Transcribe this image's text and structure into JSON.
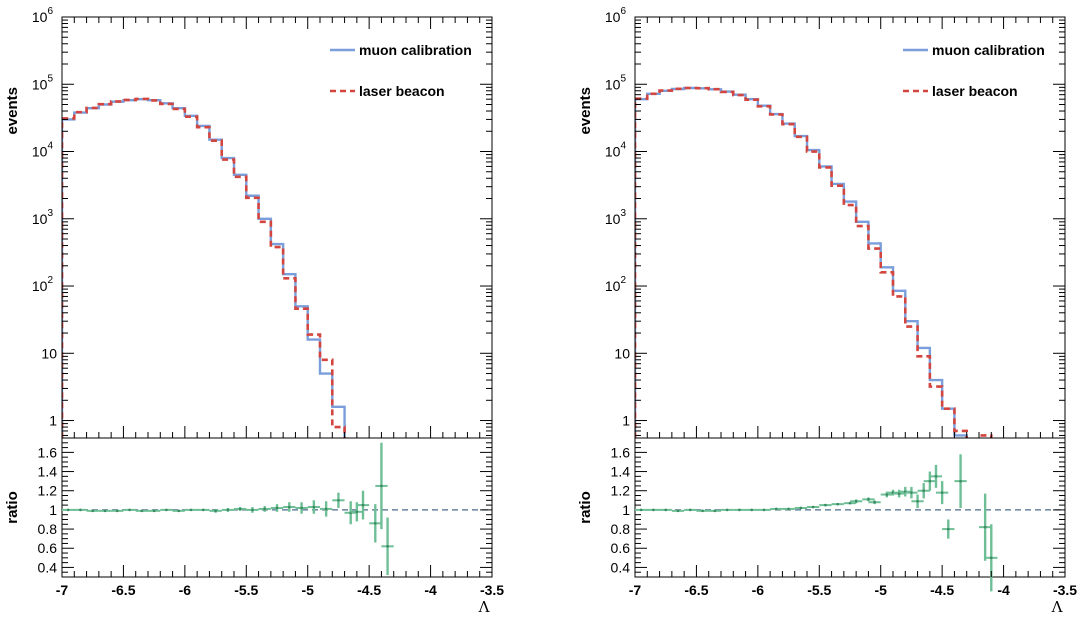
{
  "chart_data": [
    {
      "type": "histogram",
      "panel": "left",
      "legend": [
        {
          "name": "muon calibration",
          "color": "#7a9edb",
          "style": "solid"
        },
        {
          "name": "laser beacon",
          "color": "#d3453f",
          "style": "dashed"
        }
      ],
      "legend_placement": "top-right",
      "upper": {
        "ylabel": "events",
        "yscale": "log",
        "ylim": [
          0.55,
          1000000
        ],
        "yticks": [
          {
            "value": 1,
            "label": "1"
          },
          {
            "value": 10,
            "label": "10"
          },
          {
            "value": 100,
            "label": "10",
            "exp": "2"
          },
          {
            "value": 1000,
            "label": "10",
            "exp": "3"
          },
          {
            "value": 10000,
            "label": "10",
            "exp": "4"
          },
          {
            "value": 100000,
            "label": "10",
            "exp": "5"
          },
          {
            "value": 1000000,
            "label": "10",
            "exp": "6"
          }
        ],
        "bin_edges": [
          -7.0,
          -6.9,
          -6.8,
          -6.7,
          -6.6,
          -6.5,
          -6.4,
          -6.3,
          -6.2,
          -6.1,
          -6.0,
          -5.9,
          -5.8,
          -5.7,
          -5.6,
          -5.5,
          -5.4,
          -5.3,
          -5.2,
          -5.1,
          -5.0,
          -4.9,
          -4.8,
          -4.7,
          -4.6,
          -4.5,
          -4.4,
          -4.3,
          -4.2,
          -4.1,
          -4.0,
          -3.9,
          -3.8,
          -3.7,
          -3.6,
          -3.5
        ],
        "series": [
          {
            "name": "muon calibration",
            "values": [
              30000,
              38000,
              44000,
              50000,
              55000,
              58000,
              60000,
              58000,
              52000,
              44000,
              34000,
              24000,
              15000,
              8000,
              4500,
              2200,
              1000,
              420,
              150,
              50,
              16,
              5,
              1.6,
              0,
              0,
              0,
              0,
              0,
              0,
              0,
              0,
              0,
              0,
              0,
              0
            ]
          },
          {
            "name": "laser beacon",
            "values": [
              31000,
              38500,
              44500,
              50500,
              55500,
              58500,
              60500,
              57500,
              51000,
              43000,
              33000,
              23000,
              14500,
              7600,
              4200,
              2050,
              900,
              380,
              130,
              46,
              19,
              8,
              0.8,
              0,
              0,
              0,
              0,
              0,
              0,
              0,
              0,
              0,
              0,
              0,
              0
            ]
          }
        ]
      },
      "lower": {
        "ylabel": "ratio",
        "ylim": [
          0.3,
          1.75
        ],
        "yticks": [
          0.4,
          0.6,
          0.8,
          1,
          1.2,
          1.4,
          1.6
        ],
        "reference_line": 1,
        "points": [
          {
            "x": -6.95,
            "y": 1.0,
            "err": 0.01
          },
          {
            "x": -6.85,
            "y": 1.0,
            "err": 0.01
          },
          {
            "x": -6.75,
            "y": 0.99,
            "err": 0.01
          },
          {
            "x": -6.65,
            "y": 0.99,
            "err": 0.01
          },
          {
            "x": -6.55,
            "y": 0.99,
            "err": 0.01
          },
          {
            "x": -6.45,
            "y": 1.0,
            "err": 0.01
          },
          {
            "x": -6.35,
            "y": 0.99,
            "err": 0.01
          },
          {
            "x": -6.25,
            "y": 0.99,
            "err": 0.01
          },
          {
            "x": -6.15,
            "y": 1.0,
            "err": 0.01
          },
          {
            "x": -6.05,
            "y": 0.99,
            "err": 0.01
          },
          {
            "x": -5.95,
            "y": 1.0,
            "err": 0.01
          },
          {
            "x": -5.85,
            "y": 1.0,
            "err": 0.01
          },
          {
            "x": -5.75,
            "y": 0.99,
            "err": 0.02
          },
          {
            "x": -5.65,
            "y": 1.0,
            "err": 0.02
          },
          {
            "x": -5.55,
            "y": 1.01,
            "err": 0.02
          },
          {
            "x": -5.45,
            "y": 1.0,
            "err": 0.03
          },
          {
            "x": -5.35,
            "y": 1.01,
            "err": 0.03
          },
          {
            "x": -5.25,
            "y": 1.02,
            "err": 0.04
          },
          {
            "x": -5.15,
            "y": 1.03,
            "err": 0.05
          },
          {
            "x": -5.05,
            "y": 1.02,
            "err": 0.06
          },
          {
            "x": -4.95,
            "y": 1.03,
            "err": 0.07
          },
          {
            "x": -4.85,
            "y": 1.01,
            "err": 0.08
          },
          {
            "x": -4.75,
            "y": 1.1,
            "err": 0.08
          },
          {
            "x": -4.65,
            "y": 0.97,
            "err": 0.12
          },
          {
            "x": -4.6,
            "y": 0.98,
            "err": 0.1
          },
          {
            "x": -4.55,
            "y": 1.05,
            "err": 0.15
          },
          {
            "x": -4.45,
            "y": 0.86,
            "err": 0.2
          },
          {
            "x": -4.4,
            "y": 1.25,
            "err": 0.45
          },
          {
            "x": -4.35,
            "y": 0.62,
            "err": 0.3
          }
        ]
      }
    },
    {
      "type": "histogram",
      "panel": "right",
      "legend": [
        {
          "name": "muon calibration",
          "color": "#7a9edb",
          "style": "solid"
        },
        {
          "name": "laser beacon",
          "color": "#d3453f",
          "style": "dashed"
        }
      ],
      "legend_placement": "top-right",
      "upper": {
        "ylabel": "events",
        "yscale": "log",
        "ylim": [
          0.55,
          1000000
        ],
        "yticks": [
          {
            "value": 1,
            "label": "1"
          },
          {
            "value": 10,
            "label": "10"
          },
          {
            "value": 100,
            "label": "10",
            "exp": "2"
          },
          {
            "value": 1000,
            "label": "10",
            "exp": "3"
          },
          {
            "value": 10000,
            "label": "10",
            "exp": "4"
          },
          {
            "value": 100000,
            "label": "10",
            "exp": "5"
          },
          {
            "value": 1000000,
            "label": "10",
            "exp": "6"
          }
        ],
        "bin_edges": [
          -7.0,
          -6.9,
          -6.8,
          -6.7,
          -6.6,
          -6.5,
          -6.4,
          -6.3,
          -6.2,
          -6.1,
          -6.0,
          -5.9,
          -5.8,
          -5.7,
          -5.6,
          -5.5,
          -5.4,
          -5.3,
          -5.2,
          -5.1,
          -5.0,
          -4.9,
          -4.8,
          -4.7,
          -4.6,
          -4.5,
          -4.4,
          -4.3,
          -4.2,
          -4.1,
          -4.0,
          -3.9,
          -3.8,
          -3.7,
          -3.6,
          -3.5
        ],
        "series": [
          {
            "name": "muon calibration",
            "values": [
              60000,
              72000,
              80000,
              85000,
              88000,
              87000,
              84000,
              78000,
              70000,
              60000,
              48000,
              36000,
              26000,
              17000,
              10500,
              6000,
              3300,
              1800,
              900,
              430,
              190,
              85,
              30,
              12,
              4,
              1.5,
              0.6,
              0.4,
              0.5,
              0,
              0,
              0,
              0,
              0,
              0
            ]
          },
          {
            "name": "laser beacon",
            "values": [
              61000,
              72000,
              80500,
              85500,
              88000,
              87500,
              84500,
              77000,
              69000,
              59000,
              47000,
              35500,
              25500,
              16500,
              10000,
              5800,
              3100,
              1600,
              780,
              360,
              160,
              70,
              25,
              9,
              3.2,
              1.5,
              0.7,
              0.45,
              0.6,
              0,
              0,
              0,
              0,
              0,
              0
            ]
          }
        ]
      },
      "lower": {
        "ylabel": "ratio",
        "ylim": [
          0.3,
          1.75
        ],
        "yticks": [
          0.4,
          0.6,
          0.8,
          1,
          1.2,
          1.4,
          1.6
        ],
        "reference_line": 1,
        "points": [
          {
            "x": -6.95,
            "y": 1.0,
            "err": 0.01
          },
          {
            "x": -6.85,
            "y": 1.0,
            "err": 0.01
          },
          {
            "x": -6.75,
            "y": 1.0,
            "err": 0.01
          },
          {
            "x": -6.65,
            "y": 0.99,
            "err": 0.01
          },
          {
            "x": -6.55,
            "y": 1.0,
            "err": 0.01
          },
          {
            "x": -6.45,
            "y": 0.99,
            "err": 0.01
          },
          {
            "x": -6.35,
            "y": 0.99,
            "err": 0.01
          },
          {
            "x": -6.25,
            "y": 1.0,
            "err": 0.01
          },
          {
            "x": -6.15,
            "y": 1.0,
            "err": 0.01
          },
          {
            "x": -6.05,
            "y": 1.0,
            "err": 0.01
          },
          {
            "x": -5.95,
            "y": 1.0,
            "err": 0.01
          },
          {
            "x": -5.85,
            "y": 1.01,
            "err": 0.01
          },
          {
            "x": -5.75,
            "y": 1.01,
            "err": 0.01
          },
          {
            "x": -5.65,
            "y": 1.02,
            "err": 0.01
          },
          {
            "x": -5.55,
            "y": 1.03,
            "err": 0.01
          },
          {
            "x": -5.45,
            "y": 1.05,
            "err": 0.01
          },
          {
            "x": -5.35,
            "y": 1.06,
            "err": 0.01
          },
          {
            "x": -5.25,
            "y": 1.07,
            "err": 0.01
          },
          {
            "x": -5.2,
            "y": 1.09,
            "err": 0.02
          },
          {
            "x": -5.1,
            "y": 1.11,
            "err": 0.02
          },
          {
            "x": -5.05,
            "y": 1.08,
            "err": 0.02
          },
          {
            "x": -4.95,
            "y": 1.16,
            "err": 0.03
          },
          {
            "x": -4.9,
            "y": 1.18,
            "err": 0.03
          },
          {
            "x": -4.85,
            "y": 1.17,
            "err": 0.04
          },
          {
            "x": -4.8,
            "y": 1.19,
            "err": 0.05
          },
          {
            "x": -4.75,
            "y": 1.18,
            "err": 0.06
          },
          {
            "x": -4.7,
            "y": 1.09,
            "err": 0.07
          },
          {
            "x": -4.65,
            "y": 1.2,
            "err": 0.08
          },
          {
            "x": -4.6,
            "y": 1.3,
            "err": 0.1
          },
          {
            "x": -4.55,
            "y": 1.35,
            "err": 0.12
          },
          {
            "x": -4.5,
            "y": 1.18,
            "err": 0.12
          },
          {
            "x": -4.45,
            "y": 0.8,
            "err": 0.1
          },
          {
            "x": -4.35,
            "y": 1.3,
            "err": 0.28
          },
          {
            "x": -4.15,
            "y": 0.82,
            "err": 0.35
          },
          {
            "x": -4.1,
            "y": 0.5,
            "err": 0.35
          }
        ]
      }
    }
  ],
  "shared": {
    "xlabel": "Λ",
    "xlim": [
      -7,
      -3.5
    ],
    "xticks": [
      {
        "value": -7,
        "label": "-7"
      },
      {
        "value": -6.5,
        "label": "-6.5"
      },
      {
        "value": -6,
        "label": "-6"
      },
      {
        "value": -5.5,
        "label": "-5.5"
      },
      {
        "value": -5,
        "label": "-5"
      },
      {
        "value": -4.5,
        "label": "-4.5"
      },
      {
        "value": -4,
        "label": "-4"
      },
      {
        "value": -3.5,
        "label": "-3.5"
      }
    ],
    "ratio_color": "#6fbf96",
    "reference_color": "#4a6a8a"
  }
}
